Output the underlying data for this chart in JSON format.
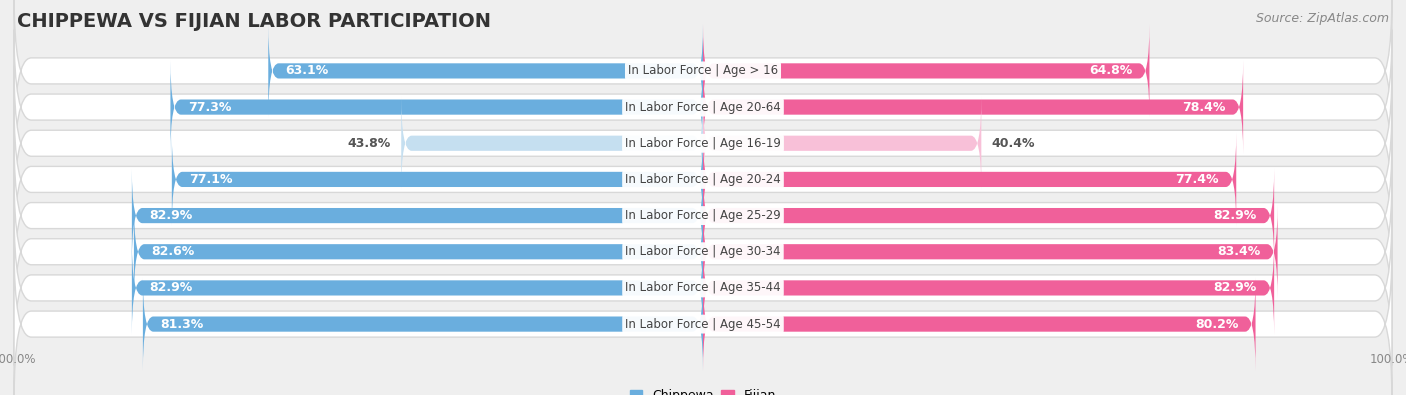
{
  "title": "CHIPPEWA VS FIJIAN LABOR PARTICIPATION",
  "source": "Source: ZipAtlas.com",
  "categories": [
    "In Labor Force | Age > 16",
    "In Labor Force | Age 20-64",
    "In Labor Force | Age 16-19",
    "In Labor Force | Age 20-24",
    "In Labor Force | Age 25-29",
    "In Labor Force | Age 30-34",
    "In Labor Force | Age 35-44",
    "In Labor Force | Age 45-54"
  ],
  "chippewa_values": [
    63.1,
    77.3,
    43.8,
    77.1,
    82.9,
    82.6,
    82.9,
    81.3
  ],
  "fijian_values": [
    64.8,
    78.4,
    40.4,
    77.4,
    82.9,
    83.4,
    82.9,
    80.2
  ],
  "chippewa_color": "#6aaede",
  "chippewa_color_light": "#c5dff0",
  "fijian_color": "#f0609a",
  "fijian_color_light": "#f8c0d8",
  "background_color": "#efefef",
  "row_bg_color": "#ffffff",
  "row_border_color": "#d8d8d8",
  "max_value": 100.0,
  "title_fontsize": 14,
  "source_fontsize": 9,
  "bar_label_fontsize": 9,
  "category_fontsize": 8.5,
  "legend_fontsize": 9,
  "axis_label_fontsize": 8.5,
  "low_threshold": 55
}
